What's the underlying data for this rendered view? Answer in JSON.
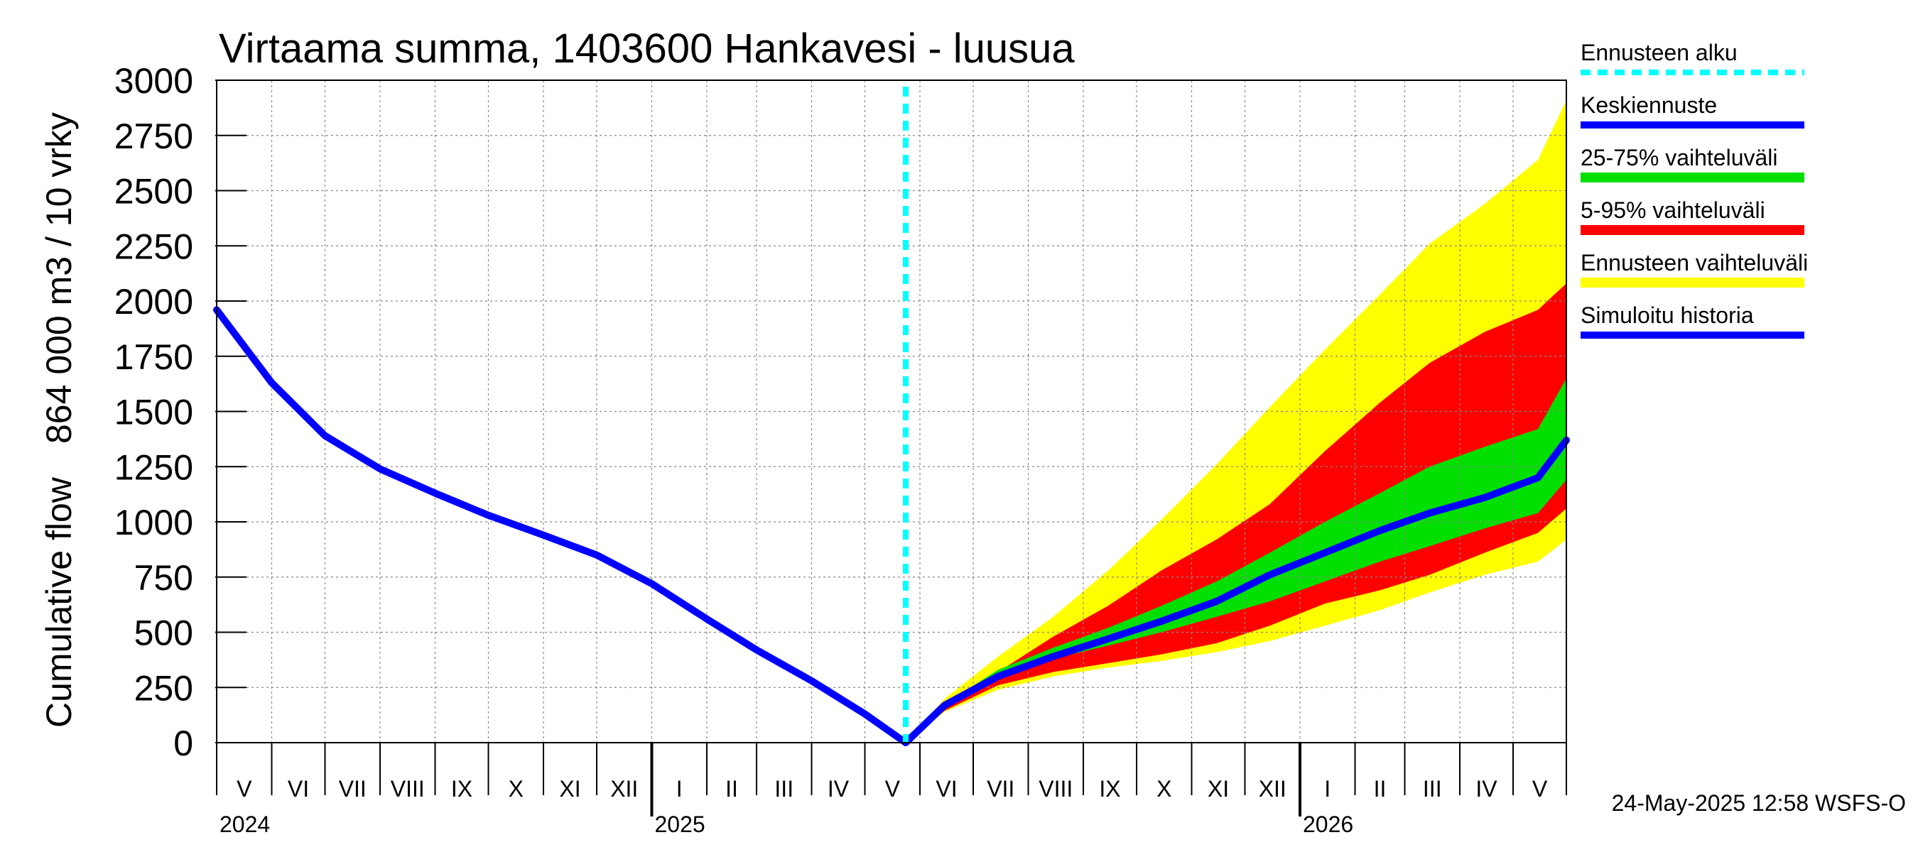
{
  "chart_data": {
    "type": "area",
    "title": "Virtaama summa, 1403600 Hankavesi - luusua",
    "ylabel_line1": "Cumulative flow",
    "ylabel_line2": "864 000 m3 / 10 vrky",
    "ylim": [
      0,
      3000
    ],
    "yticks": [
      0,
      250,
      500,
      750,
      1000,
      1250,
      1500,
      1750,
      2000,
      2250,
      2500,
      2750,
      3000
    ],
    "xlim": [
      "2024-05-01",
      "2026-05-31"
    ],
    "grid": true,
    "legend_position": "right",
    "forecast_start": "2025-05-24",
    "months": [
      {
        "label": "V",
        "start": "2024-05-01",
        "end": "2024-06-01"
      },
      {
        "label": "VI",
        "start": "2024-06-01",
        "end": "2024-07-01"
      },
      {
        "label": "VII",
        "start": "2024-07-01",
        "end": "2024-08-01"
      },
      {
        "label": "VIII",
        "start": "2024-08-01",
        "end": "2024-09-01"
      },
      {
        "label": "IX",
        "start": "2024-09-01",
        "end": "2024-10-01"
      },
      {
        "label": "X",
        "start": "2024-10-01",
        "end": "2024-11-01"
      },
      {
        "label": "XI",
        "start": "2024-11-01",
        "end": "2024-12-01"
      },
      {
        "label": "XII",
        "start": "2024-12-01",
        "end": "2025-01-01"
      },
      {
        "label": "I",
        "start": "2025-01-01",
        "end": "2025-02-01"
      },
      {
        "label": "II",
        "start": "2025-02-01",
        "end": "2025-03-01"
      },
      {
        "label": "III",
        "start": "2025-03-01",
        "end": "2025-04-01"
      },
      {
        "label": "IV",
        "start": "2025-04-01",
        "end": "2025-05-01"
      },
      {
        "label": "V",
        "start": "2025-05-01",
        "end": "2025-06-01"
      },
      {
        "label": "VI",
        "start": "2025-06-01",
        "end": "2025-07-01"
      },
      {
        "label": "VII",
        "start": "2025-07-01",
        "end": "2025-08-01"
      },
      {
        "label": "VIII",
        "start": "2025-08-01",
        "end": "2025-09-01"
      },
      {
        "label": "IX",
        "start": "2025-09-01",
        "end": "2025-10-01"
      },
      {
        "label": "X",
        "start": "2025-10-01",
        "end": "2025-11-01"
      },
      {
        "label": "XI",
        "start": "2025-11-01",
        "end": "2025-12-01"
      },
      {
        "label": "XII",
        "start": "2025-12-01",
        "end": "2026-01-01"
      },
      {
        "label": "I",
        "start": "2026-01-01",
        "end": "2026-02-01"
      },
      {
        "label": "II",
        "start": "2026-02-01",
        "end": "2026-03-01"
      },
      {
        "label": "III",
        "start": "2026-03-01",
        "end": "2026-04-01"
      },
      {
        "label": "IV",
        "start": "2026-04-01",
        "end": "2026-05-01"
      },
      {
        "label": "V",
        "start": "2026-05-01",
        "end": "2026-05-31"
      }
    ],
    "years": [
      {
        "label": "2024",
        "date": "2024-05-01"
      },
      {
        "label": "2025",
        "date": "2025-01-01"
      },
      {
        "label": "2026",
        "date": "2026-01-01"
      }
    ],
    "x": [
      "2025-05-24",
      "2025-06-15",
      "2025-07-15",
      "2025-08-15",
      "2025-09-15",
      "2025-10-15",
      "2025-11-15",
      "2025-12-15",
      "2026-01-15",
      "2026-02-15",
      "2026-03-15",
      "2026-04-15",
      "2026-05-15",
      "2026-05-31"
    ],
    "series": [
      {
        "name": "Ennusteen vaihteluväli",
        "color": "#ffff00",
        "role": "band",
        "low": [
          0,
          140,
          240,
          300,
          340,
          370,
          410,
          460,
          530,
          600,
          680,
          760,
          820,
          920
        ],
        "high": [
          0,
          200,
          390,
          570,
          780,
          1010,
          1260,
          1520,
          1780,
          2030,
          2260,
          2440,
          2640,
          2910
        ]
      },
      {
        "name": "5-95% vaihteluväli",
        "color": "#ff0000",
        "role": "band",
        "low": [
          0,
          145,
          260,
          320,
          360,
          400,
          450,
          530,
          630,
          690,
          760,
          860,
          950,
          1060
        ],
        "high": [
          0,
          180,
          320,
          480,
          620,
          780,
          920,
          1080,
          1320,
          1540,
          1720,
          1860,
          1960,
          2080
        ]
      },
      {
        "name": "25-75% vaihteluväli",
        "color": "#00e000",
        "role": "band",
        "low": [
          0,
          165,
          295,
          380,
          440,
          500,
          570,
          640,
          730,
          820,
          890,
          970,
          1040,
          1190
        ],
        "high": [
          0,
          175,
          330,
          430,
          520,
          620,
          730,
          860,
          1000,
          1130,
          1250,
          1340,
          1420,
          1650
        ]
      },
      {
        "name": "Keskiennuste",
        "color": "#0000ff",
        "role": "line",
        "values": [
          0,
          170,
          300,
          390,
          470,
          550,
          640,
          760,
          860,
          960,
          1040,
          1110,
          1200,
          1370
        ]
      },
      {
        "name": "Simuloitu historia",
        "color": "#0000ff",
        "role": "line",
        "x": [
          "2024-05-01",
          "2024-06-01",
          "2024-07-01",
          "2024-08-01",
          "2024-09-01",
          "2024-10-01",
          "2024-11-01",
          "2024-12-01",
          "2025-01-01",
          "2025-02-01",
          "2025-03-01",
          "2025-04-01",
          "2025-05-01",
          "2025-05-24"
        ],
        "values": [
          1960,
          1630,
          1390,
          1240,
          1130,
          1030,
          940,
          850,
          720,
          560,
          420,
          280,
          130,
          0
        ]
      }
    ],
    "legend": [
      {
        "label": "Ennusteen alku",
        "color": "#00ffff",
        "style": "dotted"
      },
      {
        "label": "Keskiennuste",
        "color": "#0000ff",
        "style": "line"
      },
      {
        "label": "25-75% vaihteluväli",
        "color": "#00e000",
        "style": "band"
      },
      {
        "label": "5-95% vaihteluväli",
        "color": "#ff0000",
        "style": "band"
      },
      {
        "label": "Ennusteen vaihteluväli",
        "color": "#ffff00",
        "style": "band"
      },
      {
        "label": "Simuloitu historia",
        "color": "#0000ff",
        "style": "line"
      }
    ],
    "timestamp": "24-May-2025 12:58 WSFS-O"
  }
}
